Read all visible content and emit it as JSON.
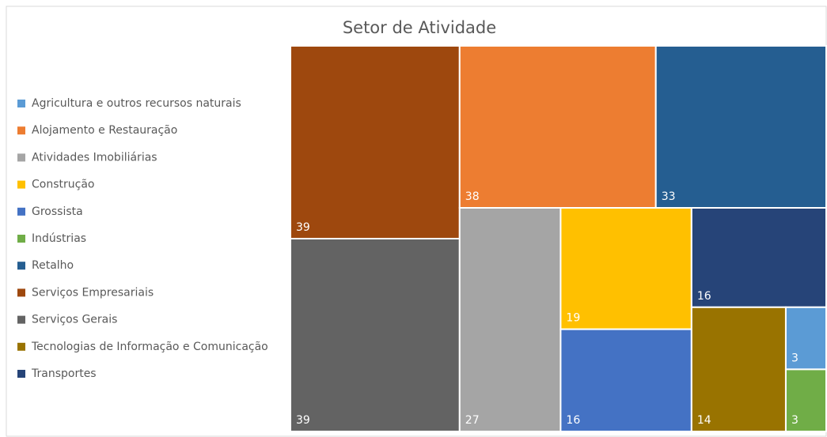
{
  "chart_data": {
    "type": "treemap",
    "title": "Setor de Atividade",
    "categories": [
      "Agricultura e outros recursos naturais",
      "Alojamento e Restauração",
      "Atividades Imobiliárias",
      "Construção",
      "Grossista",
      "Indústrias",
      "Retalho",
      "Serviços Empresariais",
      "Serviços Gerais",
      "Tecnologias de Informação e Comunicação",
      "Transportes"
    ],
    "values": [
      3,
      38,
      27,
      19,
      16,
      3,
      33,
      39,
      39,
      14,
      16
    ],
    "colors": [
      "#5b9bd5",
      "#ed7d31",
      "#a5a5a5",
      "#ffc000",
      "#4472c4",
      "#70ad47",
      "#255e91",
      "#9e480e",
      "#636363",
      "#997300",
      "#264478"
    ],
    "legend": "left"
  }
}
